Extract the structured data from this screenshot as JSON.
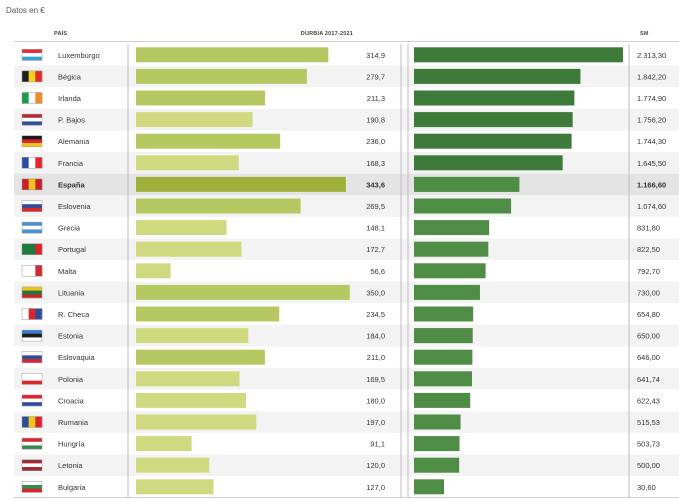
{
  "note": "Datos en €",
  "headers": {
    "country": "PAÍS",
    "value1": "DURBIA 2017-2021",
    "value2": "SM"
  },
  "colors": {
    "bar1_default": "#b6c862",
    "bar1_light": "#cfd980",
    "bar1_highlight": "#9fb03a",
    "bar2": "#4f8c45",
    "bar2_dark": "#3e7a39",
    "highlight_row": "#e4e4e4",
    "alt_row": "#f3f3f3",
    "divider": "#bdbdbd"
  },
  "chart_data": {
    "type": "bar",
    "categories": [
      "Luxemburgo",
      "Bégica",
      "Irlanda",
      "P. Bajos",
      "Alemania",
      "Francia",
      "España",
      "Eslovenia",
      "Grecia",
      "Portugal",
      "Malta",
      "Lituania",
      "R. Checa",
      "Estonia",
      "Eslovaquia",
      "Polonia",
      "Croacia",
      "Rumania",
      "Hungría",
      "Letonia",
      "Bulgaria"
    ],
    "highlight_category": "España",
    "series": [
      {
        "values": [
          314.9,
          279.7,
          211.3,
          190.8,
          236.0,
          168.3,
          343.6,
          269.5,
          148.1,
          172.7,
          56.6,
          350.0,
          234.5,
          184.0,
          211.0,
          169.5,
          180.0,
          197.0,
          91.1,
          120.0,
          127.0
        ],
        "labels": [
          "314,9",
          "279,7",
          "211,3",
          "190,8",
          "236,0",
          "168,3",
          "343,6",
          "269,5",
          "148,1",
          "172,7",
          "56,6",
          "350,0",
          "234,5",
          "184,0",
          "211,0",
          "169,5",
          "180,0",
          "197,0",
          "91,1",
          "120,0",
          "127,0"
        ],
        "xlim": [
          0,
          370
        ]
      },
      {
        "values": [
          2313.3,
          1842.2,
          1774.9,
          1756.2,
          1744.3,
          1645.5,
          1166.6,
          1074.6,
          831.8,
          822.5,
          792.7,
          730.0,
          654.8,
          650.0,
          646.0,
          641.7,
          622.4,
          515.5,
          503.7,
          500.0,
          30.6
        ],
        "labels": [
          "2.313,30",
          "1.842,20",
          "1.774,90",
          "1.756,20",
          "1.744,30",
          "1.645,50",
          "1.166,60",
          "1.074,60",
          "831,80",
          "822,50",
          "792,70",
          "730,00",
          "654,80",
          "650,00",
          "646,00",
          "641,74",
          "622,43",
          "515,53",
          "503,73",
          "500,00",
          "30,60"
        ],
        "xlim": [
          0,
          2313.3
        ]
      }
    ],
    "flags": [
      [
        "#e8303a",
        "#ffffff",
        "#3d9fd8"
      ],
      [
        "#1f1f1f",
        "#f6d21c",
        "#e12c2c"
      ],
      [
        "#1b9b4b",
        "#ffffff",
        "#f28c28"
      ],
      [
        "#b62a2f",
        "#ffffff",
        "#2b4c9a"
      ],
      [
        "#1a1a1a",
        "#d8262b",
        "#f2c318"
      ],
      [
        "#2c4c9f",
        "#ffffff",
        "#e1262d"
      ],
      [
        "#c8202a",
        "#f3c318",
        "#c8202a"
      ],
      [
        "#ffffff",
        "#2a4fa0",
        "#d8262b"
      ],
      [
        "#4f8fcc",
        "#ffffff",
        "#4f8fcc"
      ],
      [
        "#1f7a3b",
        "#1f7a3b",
        "#d8262b"
      ],
      [
        "#ffffff",
        "#ffffff",
        "#cf2a33"
      ],
      [
        "#f2c318",
        "#1f7a3b",
        "#c8262b"
      ],
      [
        "#ffffff",
        "#d8262b",
        "#2b4c9a"
      ],
      [
        "#3d78c6",
        "#1a1a1a",
        "#ffffff"
      ],
      [
        "#ffffff",
        "#2a4fa0",
        "#d8262b"
      ],
      [
        "#ffffff",
        "#ffffff",
        "#d8262b"
      ],
      [
        "#d8262b",
        "#ffffff",
        "#2b4c9a"
      ],
      [
        "#2b4c9a",
        "#f2c318",
        "#d8262b"
      ],
      [
        "#d8262b",
        "#ffffff",
        "#3a8a48"
      ],
      [
        "#9e2a35",
        "#ffffff",
        "#9e2a35"
      ],
      [
        "#ffffff",
        "#2e8b57",
        "#d8262b"
      ]
    ]
  }
}
